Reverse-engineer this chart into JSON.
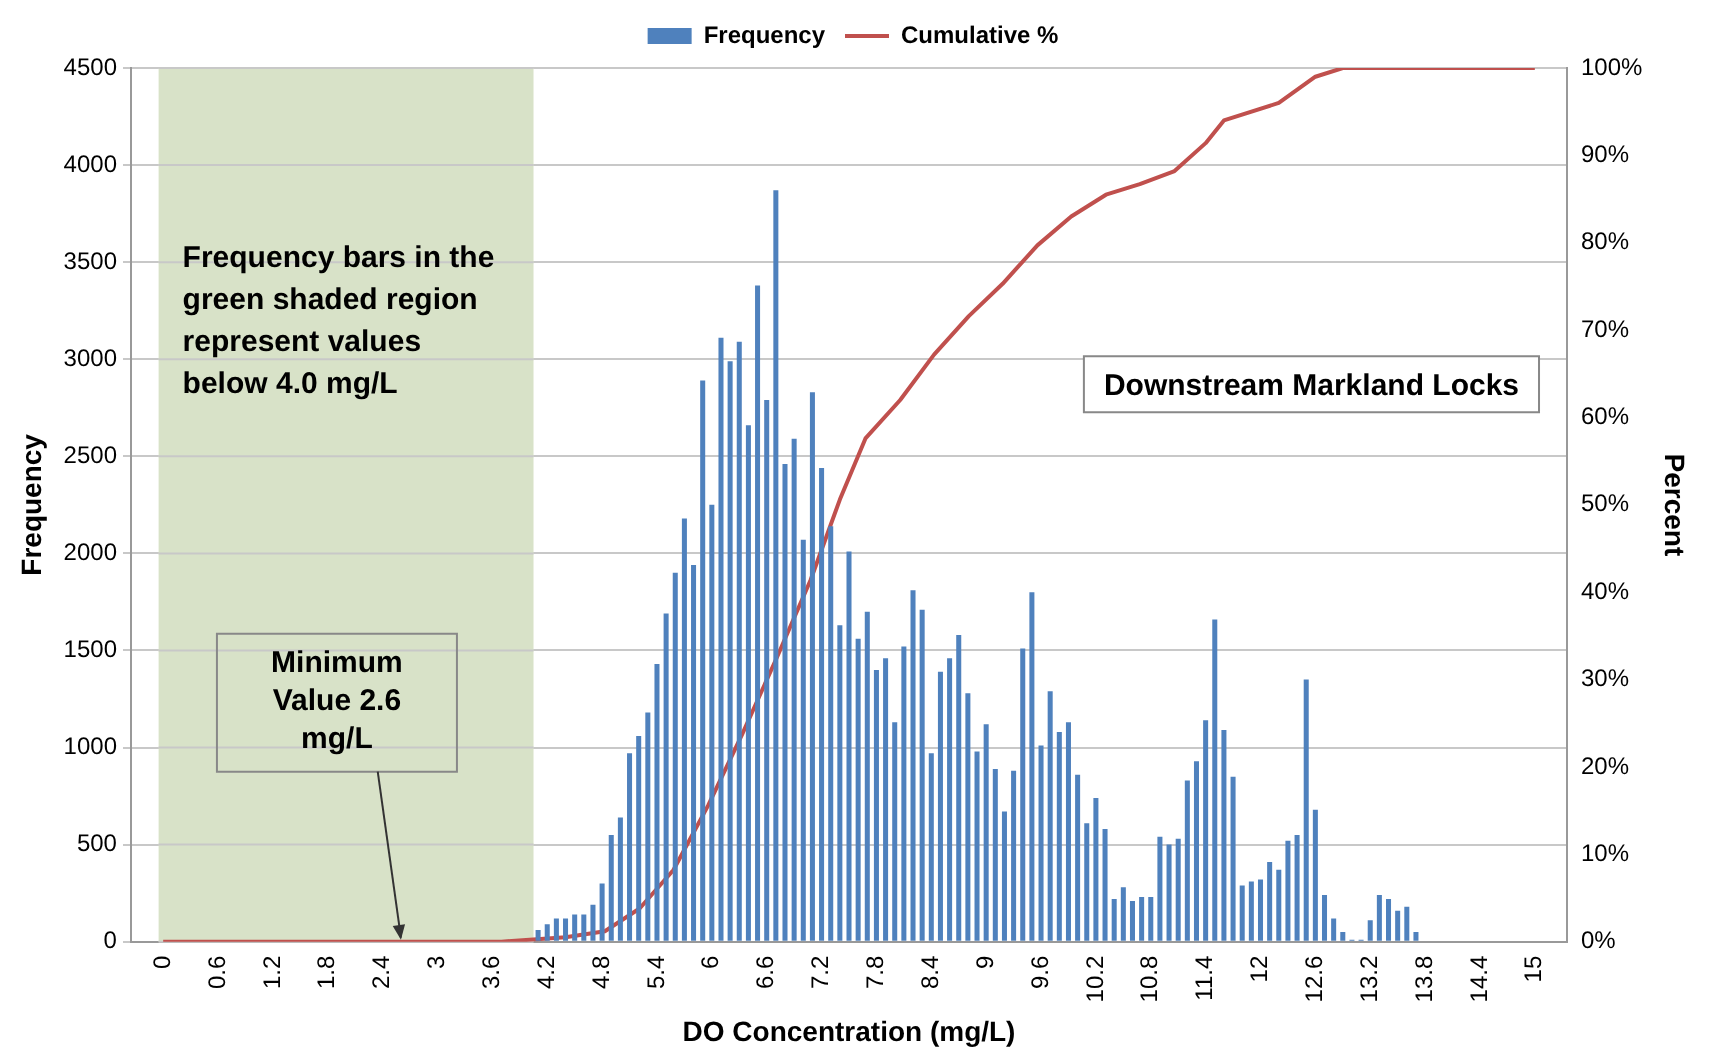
{
  "chart_data": {
    "type": "bar",
    "x": [
      0,
      0.1,
      0.2,
      0.3,
      0.4,
      0.5,
      0.6,
      0.7,
      0.8,
      0.9,
      1,
      1.1,
      1.2,
      1.3,
      1.4,
      1.5,
      1.6,
      1.7,
      1.8,
      1.9,
      2,
      2.1,
      2.2,
      2.3,
      2.4,
      2.5,
      2.6,
      2.7,
      2.8,
      2.9,
      3,
      3.1,
      3.2,
      3.3,
      3.4,
      3.5,
      3.6,
      3.7,
      3.8,
      3.9,
      4,
      4.1,
      4.2,
      4.3,
      4.4,
      4.5,
      4.6,
      4.7,
      4.8,
      4.9,
      5,
      5.1,
      5.2,
      5.3,
      5.4,
      5.5,
      5.6,
      5.7,
      5.8,
      5.9,
      6,
      6.1,
      6.2,
      6.3,
      6.4,
      6.5,
      6.6,
      6.7,
      6.8,
      6.9,
      7,
      7.1,
      7.2,
      7.3,
      7.4,
      7.5,
      7.6,
      7.7,
      7.8,
      7.9,
      8,
      8.1,
      8.2,
      8.3,
      8.4,
      8.5,
      8.6,
      8.7,
      8.8,
      8.9,
      9,
      9.1,
      9.2,
      9.3,
      9.4,
      9.5,
      9.6,
      9.7,
      9.8,
      9.9,
      10,
      10.1,
      10.2,
      10.3,
      10.4,
      10.5,
      10.6,
      10.7,
      10.8,
      10.9,
      11,
      11.1,
      11.2,
      11.3,
      11.4,
      11.5,
      11.6,
      11.7,
      11.8,
      11.9,
      12,
      12.1,
      12.2,
      12.3,
      12.4,
      12.5,
      12.6,
      12.7,
      12.8,
      12.9,
      13,
      13.1,
      13.2,
      13.3,
      13.4,
      13.5,
      13.6,
      13.7,
      13.8,
      13.9,
      14,
      14.1,
      14.2,
      14.3,
      14.4,
      14.5,
      14.6,
      14.7,
      14.8,
      14.9,
      15
    ],
    "xlim": [
      -0.05,
      15.05
    ],
    "xticks": [
      0,
      0.6,
      1.2,
      1.8,
      2.4,
      3,
      3.6,
      4.2,
      4.8,
      5.4,
      6,
      6.6,
      7.2,
      7.8,
      8.4,
      9,
      9.6,
      10.2,
      10.8,
      11.4,
      12,
      12.6,
      13.2,
      13.8,
      14.4,
      15
    ],
    "ylim": [
      0,
      4500
    ],
    "yticks": [
      0,
      500,
      1000,
      1500,
      2000,
      2500,
      3000,
      3500,
      4000,
      4500
    ],
    "y2lim": [
      0,
      100
    ],
    "y2ticks": [
      {
        "value": 0,
        "label": "0%"
      },
      {
        "value": 10,
        "label": "10%"
      },
      {
        "value": 20,
        "label": "20%"
      },
      {
        "value": 30,
        "label": "30%"
      },
      {
        "value": 40,
        "label": "40%"
      },
      {
        "value": 50,
        "label": "50%"
      },
      {
        "value": 60,
        "label": "60%"
      },
      {
        "value": 70,
        "label": "70%"
      },
      {
        "value": 80,
        "label": "80%"
      },
      {
        "value": 90,
        "label": "90%"
      },
      {
        "value": 100,
        "label": "100%"
      }
    ],
    "xlabel": "DO Concentration (mg/L)",
    "ylabel": "Frequency",
    "y2label": "Percent",
    "series": [
      {
        "name": "Frequency",
        "color": "#4f81bd",
        "values": [
          0,
          0,
          0,
          0,
          0,
          0,
          0,
          0,
          0,
          0,
          0,
          0,
          0,
          0,
          0,
          0,
          0,
          0,
          0,
          0,
          0,
          0,
          0,
          0,
          0,
          0,
          0,
          0,
          0,
          0,
          0,
          0,
          0,
          0,
          0,
          0,
          0,
          0,
          0,
          0,
          0,
          60,
          90,
          120,
          120,
          140,
          140,
          190,
          300,
          550,
          640,
          970,
          1060,
          1180,
          1430,
          1690,
          1900,
          2180,
          1940,
          2890,
          2250,
          3110,
          2990,
          3090,
          2660,
          3380,
          2790,
          3870,
          2460,
          2590,
          2070,
          2830,
          2440,
          2140,
          1630,
          2010,
          1560,
          1700,
          1400,
          1460,
          1130,
          1520,
          1810,
          1710,
          970,
          1390,
          1460,
          1580,
          1280,
          980,
          1120,
          890,
          670,
          880,
          1510,
          1800,
          1010,
          1290,
          1080,
          1130,
          860,
          610,
          740,
          580,
          220,
          280,
          210,
          230,
          230,
          540,
          500,
          530,
          830,
          930,
          1140,
          1660,
          1090,
          850,
          290,
          310,
          320,
          410,
          370,
          520,
          550,
          1350,
          680,
          240,
          120,
          50,
          10,
          10,
          110,
          240,
          220,
          160,
          180,
          50,
          0,
          0,
          0,
          0,
          0,
          0,
          0,
          0,
          0,
          0,
          0,
          0,
          0
        ]
      },
      {
        "name": "Cumulative %",
        "type": "line",
        "axis": "y2",
        "color": "#c0504d",
        "x": [
          0,
          3.7,
          4.4,
          4.83,
          5.21,
          5.58,
          5.96,
          6.33,
          6.71,
          7.08,
          7.4,
          7.68,
          8.06,
          8.43,
          8.81,
          9.18,
          9.56,
          9.93,
          10.31,
          10.68,
          11.06,
          11.4,
          11.6,
          12.2,
          12.6,
          12.9,
          15
        ],
        "values": [
          0,
          0,
          0.5,
          1.2,
          3.8,
          8.2,
          15.6,
          23.7,
          32.5,
          41.4,
          50.6,
          57.6,
          62,
          67.2,
          71.6,
          75.3,
          79.7,
          83,
          85.5,
          86.7,
          88.2,
          91.4,
          94,
          96,
          99,
          100,
          100
        ]
      }
    ],
    "marker": "none",
    "grid": "y",
    "legend": "top",
    "bands": [
      {
        "axis": "x",
        "from": -0.05,
        "to": 4.05,
        "color": "#d8e2c8",
        "label": "Frequency bars in the green shaded region represent values below 4.0 mg/L"
      }
    ],
    "annotations": [
      {
        "text": "Minimum Value 2.6 mg/L",
        "x": 2.6,
        "y": 0
      },
      "Downstream Markland Locks"
    ]
  }
}
